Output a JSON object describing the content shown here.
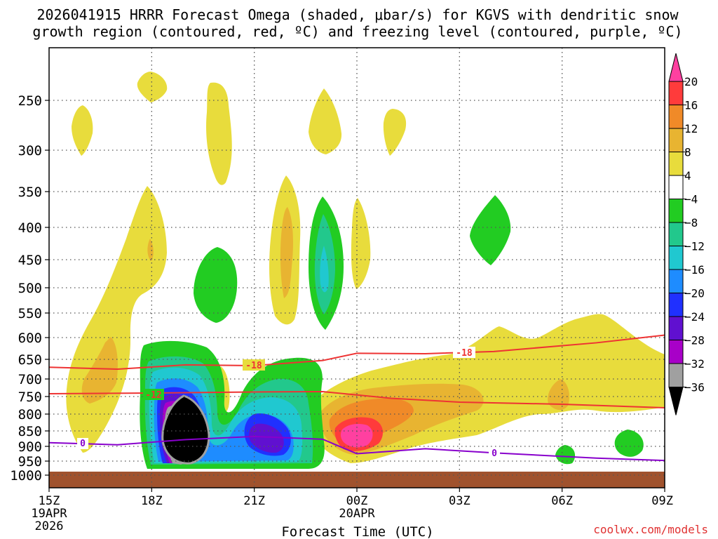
{
  "chart_data": {
    "type": "heatmap",
    "title_line1": "2026041915 HRRR Forecast Omega (shaded, μbar/s) for KGVS with dendritic snow",
    "title_line2": "growth region (contoured, red, ºC) and freezing level (contoured, purple, ºC)",
    "xlabel": "Forecast Time (UTC)",
    "credit": "coolwx.com/models",
    "x_ticks": [
      {
        "hour": 0,
        "label": "15Z",
        "sub1": "19APR",
        "sub2": "2026"
      },
      {
        "hour": 3,
        "label": "18Z",
        "sub1": "",
        "sub2": ""
      },
      {
        "hour": 6,
        "label": "21Z",
        "sub1": "",
        "sub2": ""
      },
      {
        "hour": 9,
        "label": "00Z",
        "sub1": "20APR",
        "sub2": ""
      },
      {
        "hour": 12,
        "label": "03Z",
        "sub1": "",
        "sub2": ""
      },
      {
        "hour": 15,
        "label": "06Z",
        "sub1": "",
        "sub2": ""
      },
      {
        "hour": 18,
        "label": "09Z",
        "sub1": "",
        "sub2": ""
      }
    ],
    "x_range": [
      0,
      18
    ],
    "y_ticks": [
      250,
      300,
      350,
      400,
      450,
      500,
      550,
      600,
      650,
      700,
      750,
      800,
      850,
      900,
      950,
      1000
    ],
    "y_unit": "hPa",
    "colorbar": {
      "labels": [
        "20",
        "16",
        "12",
        "8",
        "4",
        "−4",
        "−8",
        "−12",
        "−16",
        "−20",
        "−24",
        "−28",
        "−32",
        "−36"
      ],
      "colors": [
        "#ff40a0",
        "#ff3b3b",
        "#f08a28",
        "#e8b431",
        "#e8dc3c",
        "#ffffff",
        "#22cc22",
        "#22c88c",
        "#20c8d0",
        "#1e8cff",
        "#2030ff",
        "#6010d0",
        "#a800c8",
        "#a0a0a0",
        "#000000"
      ]
    },
    "contour_labels": {
      "dgz_top": "-18",
      "dgz_bottom": "-12",
      "freezing": "0"
    },
    "dgz_top_line": [
      [
        0,
        670
      ],
      [
        2,
        675
      ],
      [
        4,
        664
      ],
      [
        6,
        666
      ],
      [
        8,
        653
      ],
      [
        9,
        636
      ],
      [
        11,
        637
      ],
      [
        13,
        632
      ],
      [
        16,
        612
      ],
      [
        18,
        595
      ]
    ],
    "dgz_bottom_line": [
      [
        0,
        742
      ],
      [
        3,
        740
      ],
      [
        6,
        737
      ],
      [
        8,
        736
      ],
      [
        10,
        755
      ],
      [
        12,
        766
      ],
      [
        15,
        772
      ],
      [
        18,
        782
      ]
    ],
    "freezing_line": [
      [
        0,
        888
      ],
      [
        2,
        895
      ],
      [
        4,
        878
      ],
      [
        6,
        868
      ],
      [
        8,
        877
      ],
      [
        9,
        925
      ],
      [
        11,
        908
      ],
      [
        13,
        922
      ],
      [
        16,
        940
      ],
      [
        18,
        948
      ]
    ]
  }
}
